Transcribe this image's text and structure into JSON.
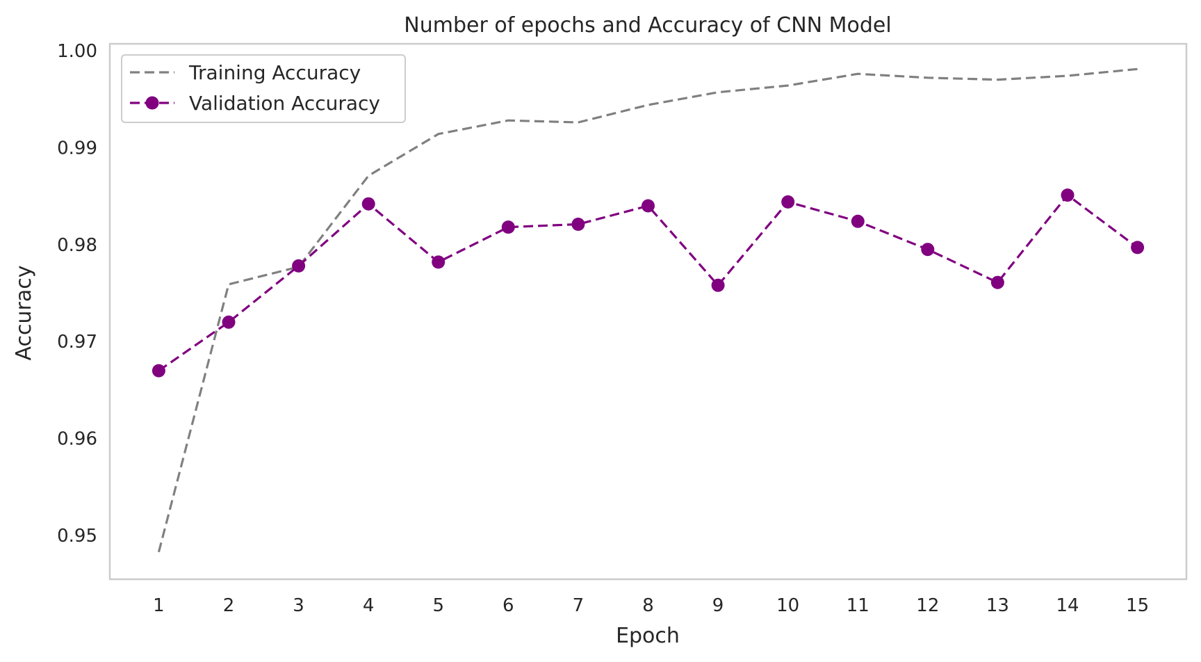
{
  "chart_data": {
    "type": "line",
    "title": "Number of epochs and Accuracy of CNN Model",
    "xlabel": "Epoch",
    "ylabel": "Accuracy",
    "x": [
      1,
      2,
      3,
      4,
      5,
      6,
      7,
      8,
      9,
      10,
      11,
      12,
      13,
      14,
      15
    ],
    "x_tick_labels": [
      "1",
      "2",
      "3",
      "4",
      "5",
      "6",
      "7",
      "8",
      "9",
      "10",
      "11",
      "12",
      "13",
      "14",
      "15"
    ],
    "xlim": [
      0.3,
      15.7
    ],
    "ylim": [
      0.9455,
      1.0007
    ],
    "y_ticks": [
      0.95,
      0.96,
      0.97,
      0.98,
      0.99,
      1.0
    ],
    "y_tick_labels": [
      "0.95",
      "0.96",
      "0.97",
      "0.98",
      "0.99",
      "1.00"
    ],
    "grid": false,
    "legend_position": "top-left",
    "series": [
      {
        "name": "Training Accuracy",
        "color": "#808080",
        "line_style": "dashed",
        "marker": "none",
        "values": [
          0.9483,
          0.9759,
          0.9777,
          0.9871,
          0.9914,
          0.9928,
          0.9926,
          0.9944,
          0.9957,
          0.9964,
          0.9976,
          0.9972,
          0.997,
          0.9974,
          0.9981
        ]
      },
      {
        "name": "Validation Accuracy",
        "color": "#800080",
        "line_style": "dashed",
        "marker": "circle",
        "values": [
          0.967,
          0.972,
          0.9778,
          0.9842,
          0.9782,
          0.9818,
          0.9821,
          0.984,
          0.9758,
          0.9844,
          0.9824,
          0.9795,
          0.9761,
          0.9851,
          0.9797
        ]
      }
    ]
  }
}
